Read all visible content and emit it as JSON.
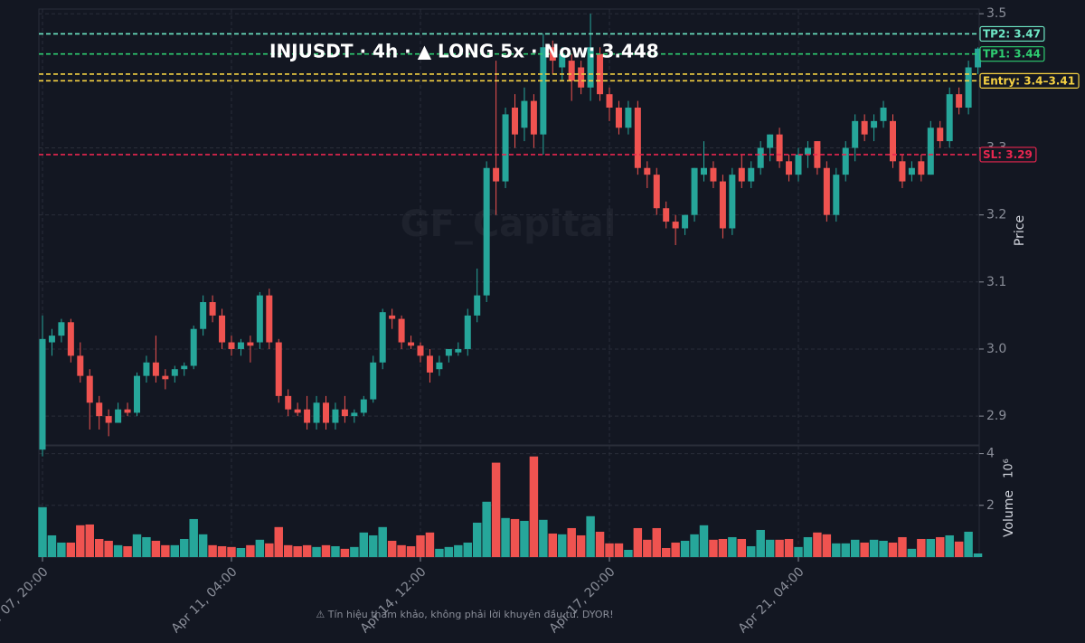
{
  "chart_data": {
    "type": "candlestick",
    "title": "INJUSDT · 4h · ▲ LONG 5x · Now: 3.448",
    "watermark": "GF_Capital",
    "footer": "⚠ Tín hiệu tham khảo, không phải lời khuyên đầu tư. DYOR!",
    "ylabel": "Price",
    "up_color": "#26a69a",
    "down_color": "#ef5350",
    "grid": true,
    "open": [
      2.85,
      3.01,
      3.02,
      3.04,
      2.99,
      2.96,
      2.92,
      2.9,
      2.89,
      2.91,
      2.905,
      2.96,
      2.98,
      2.96,
      2.96,
      2.97,
      2.975,
      3.03,
      3.07,
      3.05,
      3.01,
      3.0,
      3.01,
      3.01,
      3.08,
      3.01,
      2.93,
      2.91,
      2.91,
      2.89,
      2.92,
      2.89,
      2.91,
      2.9,
      2.905,
      2.925,
      2.98,
      3.05,
      3.045,
      3.01,
      3.005,
      2.99,
      2.97,
      2.99,
      2.995,
      3.0,
      3.05,
      3.08,
      3.27,
      3.25,
      3.36,
      3.33,
      3.37,
      3.32,
      3.45,
      3.42,
      3.43,
      3.42,
      3.39,
      3.44,
      3.38,
      3.36,
      3.33,
      3.36,
      3.27,
      3.26,
      3.21,
      3.19,
      3.18,
      3.2,
      3.26,
      3.27,
      3.25,
      3.18,
      3.27,
      3.25,
      3.27,
      3.3,
      3.32,
      3.28,
      3.26,
      3.29,
      3.31,
      3.27,
      3.2,
      3.26,
      3.3,
      3.34,
      3.33,
      3.34,
      3.34,
      3.28,
      3.26,
      3.28,
      3.26,
      3.33,
      3.31,
      3.38,
      3.36,
      3.42
    ],
    "high": [
      3.05,
      3.03,
      3.045,
      3.045,
      3.01,
      2.97,
      2.93,
      2.91,
      2.92,
      2.92,
      2.965,
      2.99,
      3.02,
      2.97,
      2.975,
      2.98,
      3.035,
      3.08,
      3.08,
      3.06,
      3.02,
      3.015,
      3.02,
      3.085,
      3.09,
      3.015,
      2.94,
      2.92,
      2.93,
      2.93,
      2.93,
      2.92,
      2.93,
      2.91,
      2.93,
      2.99,
      3.06,
      3.06,
      3.05,
      3.02,
      3.01,
      3.0,
      2.99,
      3.0,
      3.01,
      3.06,
      3.12,
      3.28,
      3.43,
      3.36,
      3.38,
      3.39,
      3.38,
      3.47,
      3.46,
      3.45,
      3.44,
      3.43,
      3.5,
      3.45,
      3.39,
      3.37,
      3.37,
      3.37,
      3.28,
      3.27,
      3.22,
      3.2,
      3.2,
      3.27,
      3.31,
      3.28,
      3.26,
      3.27,
      3.29,
      3.28,
      3.31,
      3.32,
      3.33,
      3.29,
      3.3,
      3.31,
      3.31,
      3.28,
      3.27,
      3.31,
      3.35,
      3.35,
      3.35,
      3.37,
      3.35,
      3.29,
      3.28,
      3.29,
      3.34,
      3.34,
      3.39,
      3.39,
      3.43,
      3.45
    ],
    "low": [
      2.84,
      2.99,
      3.01,
      2.98,
      2.95,
      2.88,
      2.88,
      2.87,
      2.89,
      2.9,
      2.9,
      2.95,
      2.95,
      2.94,
      2.95,
      2.96,
      2.97,
      3.02,
      3.04,
      3.0,
      2.99,
      2.99,
      2.98,
      3.0,
      3.0,
      2.92,
      2.9,
      2.9,
      2.88,
      2.88,
      2.88,
      2.88,
      2.89,
      2.89,
      2.9,
      2.92,
      2.97,
      3.03,
      3.0,
      3.0,
      2.98,
      2.95,
      2.96,
      2.98,
      2.99,
      2.99,
      3.04,
      3.07,
      3.2,
      3.24,
      3.3,
      3.31,
      3.3,
      3.29,
      3.41,
      3.4,
      3.37,
      3.38,
      3.37,
      3.37,
      3.34,
      3.32,
      3.32,
      3.26,
      3.24,
      3.2,
      3.18,
      3.155,
      3.17,
      3.19,
      3.25,
      3.24,
      3.165,
      3.17,
      3.24,
      3.24,
      3.26,
      3.28,
      3.27,
      3.25,
      3.25,
      3.27,
      3.26,
      3.19,
      3.19,
      3.25,
      3.28,
      3.31,
      3.31,
      3.33,
      3.27,
      3.24,
      3.25,
      3.25,
      3.26,
      3.3,
      3.3,
      3.35,
      3.35,
      3.41
    ],
    "close": [
      3.015,
      3.02,
      3.04,
      2.99,
      2.96,
      2.92,
      2.9,
      2.89,
      2.91,
      2.905,
      2.96,
      2.98,
      2.96,
      2.955,
      2.97,
      2.975,
      3.03,
      3.07,
      3.05,
      3.01,
      3.0,
      3.01,
      3.005,
      3.08,
      3.01,
      2.93,
      2.91,
      2.905,
      2.89,
      2.92,
      2.89,
      2.91,
      2.9,
      2.905,
      2.925,
      2.98,
      3.055,
      3.045,
      3.01,
      3.005,
      2.99,
      2.965,
      2.98,
      3.0,
      3.0,
      3.05,
      3.08,
      3.27,
      3.25,
      3.35,
      3.32,
      3.37,
      3.32,
      3.45,
      3.43,
      3.44,
      3.4,
      3.39,
      3.45,
      3.38,
      3.36,
      3.33,
      3.36,
      3.27,
      3.26,
      3.21,
      3.19,
      3.18,
      3.2,
      3.27,
      3.27,
      3.25,
      3.18,
      3.26,
      3.25,
      3.27,
      3.3,
      3.32,
      3.28,
      3.26,
      3.29,
      3.3,
      3.27,
      3.2,
      3.26,
      3.3,
      3.34,
      3.32,
      3.34,
      3.36,
      3.28,
      3.25,
      3.27,
      3.26,
      3.33,
      3.31,
      3.38,
      3.36,
      3.42,
      3.448
    ],
    "ylim": [
      2.857,
      3.507
    ],
    "yticks": [
      2.9,
      {
        "value": 3,
        "label": "3.0"
      },
      3.1,
      3.2,
      3.3,
      3.4,
      3.5
    ],
    "xticks": [
      {
        "value": 0,
        "label": "Apr 07, 20:00"
      },
      {
        "value": 20,
        "label": "Apr 11, 04:00"
      },
      {
        "value": 40,
        "label": "Apr 14, 12:00"
      },
      {
        "value": 60,
        "label": "Apr 17, 20:00"
      },
      {
        "value": 80,
        "label": "Apr 21, 04:00"
      }
    ],
    "levels": [
      {
        "label": "TP2: 3.47",
        "values": [
          3.47
        ],
        "color": "#6ee7c5"
      },
      {
        "label": "TP1: 3.44",
        "values": [
          3.44
        ],
        "color": "#2ecc71"
      },
      {
        "label": "Entry: 3.4–3.41",
        "values": [
          3.4,
          3.41
        ],
        "color": "#f5d142"
      },
      {
        "label": "SL: 3.29",
        "values": [
          3.29
        ],
        "color": "#e8264f"
      }
    ],
    "volume": {
      "ylabel": "Volume",
      "offset_label": "10⁶",
      "ylim": [
        0,
        4.3
      ],
      "yticks": [
        2,
        4
      ],
      "values": [
        1.93,
        0.84,
        0.56,
        0.56,
        1.23,
        1.26,
        0.7,
        0.63,
        0.46,
        0.42,
        0.88,
        0.77,
        0.63,
        0.46,
        0.46,
        0.7,
        1.47,
        0.88,
        0.46,
        0.42,
        0.39,
        0.35,
        0.46,
        0.67,
        0.53,
        1.16,
        0.46,
        0.42,
        0.46,
        0.39,
        0.46,
        0.42,
        0.32,
        0.39,
        0.95,
        0.84,
        1.16,
        0.63,
        0.46,
        0.42,
        0.84,
        0.95,
        0.32,
        0.39,
        0.46,
        0.56,
        1.33,
        2.14,
        3.65,
        1.51,
        1.47,
        1.4,
        3.89,
        1.44,
        0.91,
        0.88,
        1.12,
        0.84,
        1.58,
        0.98,
        0.53,
        0.53,
        0.28,
        1.12,
        0.67,
        1.12,
        0.35,
        0.56,
        0.63,
        0.88,
        1.23,
        0.67,
        0.7,
        0.77,
        0.7,
        0.42,
        1.05,
        0.67,
        0.67,
        0.7,
        0.39,
        0.77,
        0.95,
        0.88,
        0.53,
        0.53,
        0.67,
        0.56,
        0.67,
        0.63,
        0.56,
        0.77,
        0.32,
        0.7,
        0.7,
        0.77,
        0.84,
        0.6,
        0.98,
        0.14
      ]
    }
  }
}
